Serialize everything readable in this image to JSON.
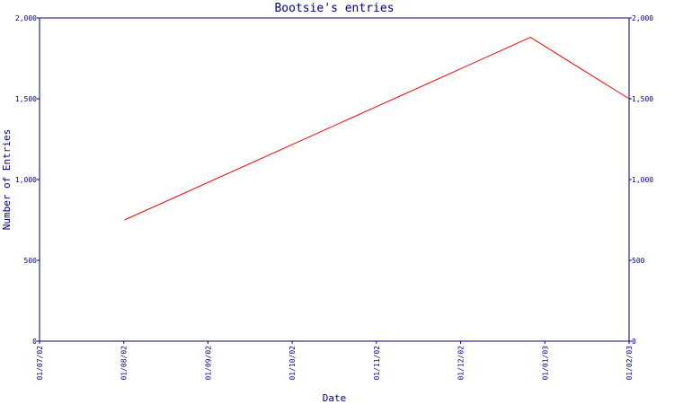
{
  "chart_data": {
    "type": "line",
    "title": "Bootsie's entries",
    "xlabel": "Date",
    "ylabel": "Number of Entries",
    "x_ticks": [
      "01/07/02",
      "01/08/02",
      "01/09/02",
      "01/10/02",
      "01/11/02",
      "01/12/02",
      "01/01/03",
      "01/02/03"
    ],
    "y_ticks": [
      "0",
      "500",
      "1,000",
      "1,500",
      "2,000"
    ],
    "y_ticks_right": [
      "0",
      "500",
      "1,000",
      "1,500",
      "2,000"
    ],
    "ylim": [
      0,
      2000
    ],
    "xlim": [
      "2002-07-01",
      "2003-02-01"
    ],
    "grid": false,
    "legend": "none",
    "series": [
      {
        "color": "#ff0000",
        "points": [
          {
            "x": "2002-08-01",
            "y": 750
          },
          {
            "x": "2002-12-27",
            "y": 1880
          },
          {
            "x": "2003-02-01",
            "y": 1500
          }
        ]
      }
    ],
    "colors": {
      "axis": "#000080",
      "text": "#000080",
      "series": "#ff0000",
      "background": "#ffffff"
    }
  }
}
